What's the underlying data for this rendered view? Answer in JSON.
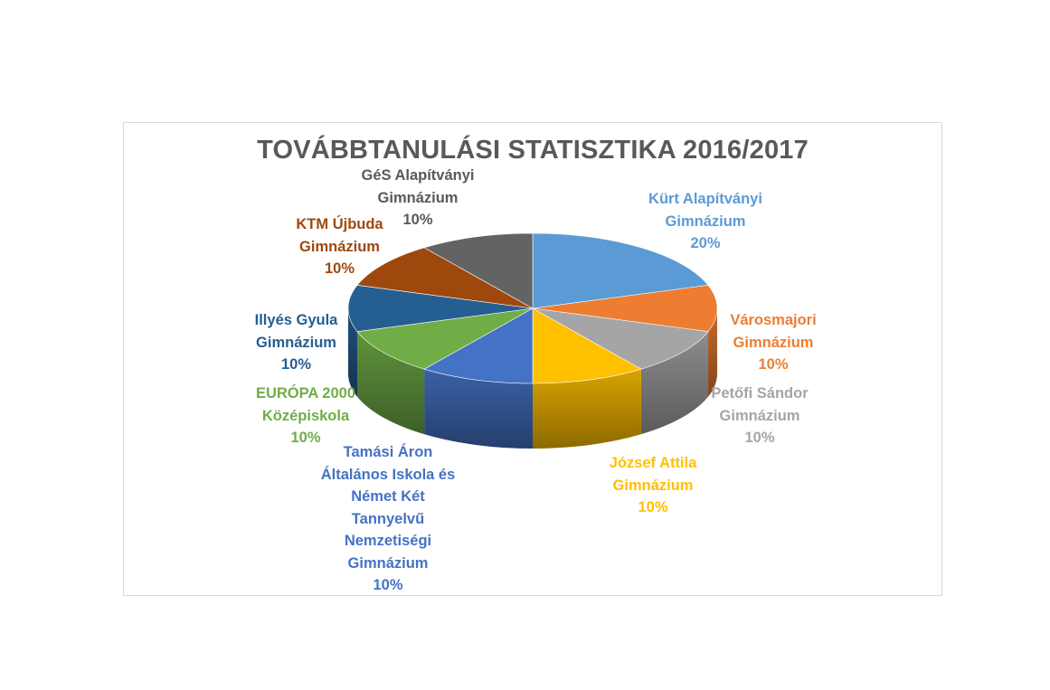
{
  "chart_data": {
    "type": "pie",
    "title": "TOVÁBBTANULÁSI STATISZTIKA 2016/2017",
    "slices": [
      {
        "label_lines": [
          "Kürt Alapítványi",
          "Gimnázium"
        ],
        "pct": "20%",
        "value": 20,
        "color": "#5b9bd5"
      },
      {
        "label_lines": [
          "Városmajori",
          "Gimnázium"
        ],
        "pct": "10%",
        "value": 10,
        "color": "#ed7d31"
      },
      {
        "label_lines": [
          "Petőfi Sándor",
          "Gimnázium"
        ],
        "pct": "10%",
        "value": 10,
        "color": "#a5a5a5"
      },
      {
        "label_lines": [
          "József Attila",
          "Gimnázium"
        ],
        "pct": "10%",
        "value": 10,
        "color": "#ffc000"
      },
      {
        "label_lines": [
          "Tamási Áron",
          "Általános Iskola és",
          "Német Két",
          "Tannyelvű",
          "Nemzetiségi",
          "Gimnázium"
        ],
        "pct": "10%",
        "value": 10,
        "color": "#4472c4"
      },
      {
        "label_lines": [
          "EURÓPA 2000",
          "Középiskola"
        ],
        "pct": "10%",
        "value": 10,
        "color": "#70ad47"
      },
      {
        "label_lines": [
          "Illyés Gyula",
          "Gimnázium"
        ],
        "pct": "10%",
        "value": 10,
        "color": "#255e91"
      },
      {
        "label_lines": [
          "KTM Újbuda",
          "Gimnázium"
        ],
        "pct": "10%",
        "value": 10,
        "color": "#9e480e"
      },
      {
        "label_lines": [
          "GéS Alapítványi",
          "Gimnázium"
        ],
        "pct": "10%",
        "value": 10,
        "color": "#636363"
      }
    ]
  }
}
